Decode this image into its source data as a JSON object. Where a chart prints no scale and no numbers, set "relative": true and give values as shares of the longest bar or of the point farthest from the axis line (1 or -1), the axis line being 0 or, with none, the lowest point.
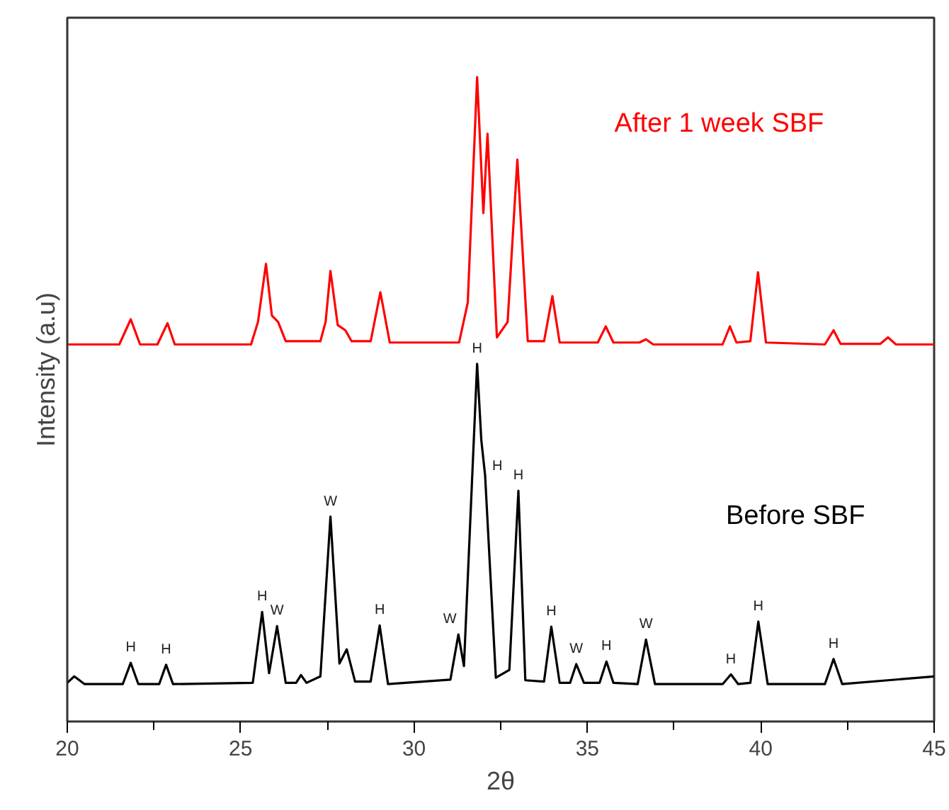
{
  "chart_data": {
    "type": "line",
    "relative": true,
    "xlabel": "2θ",
    "ylabel": "Intensity (a.u)",
    "xlim": [
      20,
      45
    ],
    "xticks": [
      20,
      25,
      30,
      35,
      40,
      45
    ],
    "grid": false,
    "marker": "none",
    "line_style": "solid",
    "series": [
      {
        "name": "After 1 week SBF",
        "color": "#ff0000",
        "x": [
          20,
          21.5,
          21.83,
          22.1,
          22.6,
          22.89,
          23.1,
          25.3,
          25.5,
          25.73,
          25.9,
          26.08,
          26.3,
          27.3,
          27.45,
          27.59,
          27.8,
          28.02,
          28.2,
          28.75,
          29.03,
          29.3,
          31.3,
          31.55,
          31.82,
          32.0,
          32.12,
          32.39,
          32.7,
          32.98,
          33.28,
          33.75,
          33.99,
          34.2,
          35.3,
          35.53,
          35.75,
          36.5,
          36.69,
          36.9,
          38.9,
          39.11,
          39.3,
          39.7,
          39.92,
          40.15,
          41.85,
          42.1,
          42.3,
          43.45,
          43.67,
          43.9,
          45
        ],
        "values": [
          0.585,
          0.585,
          0.624,
          0.585,
          0.585,
          0.618,
          0.585,
          0.585,
          0.62,
          0.71,
          0.63,
          0.62,
          0.59,
          0.59,
          0.62,
          0.699,
          0.615,
          0.607,
          0.59,
          0.59,
          0.666,
          0.588,
          0.588,
          0.65,
          1.0,
          0.789,
          0.912,
          0.596,
          0.62,
          0.872,
          0.59,
          0.59,
          0.66,
          0.588,
          0.588,
          0.613,
          0.588,
          0.588,
          0.593,
          0.585,
          0.585,
          0.613,
          0.588,
          0.59,
          0.697,
          0.588,
          0.585,
          0.607,
          0.586,
          0.586,
          0.596,
          0.585,
          0.585
        ]
      },
      {
        "name": "Before SBF",
        "color": "#000000",
        "x": [
          20,
          20.2,
          20.5,
          21.6,
          21.83,
          22.05,
          22.65,
          22.85,
          23.05,
          25.35,
          25.62,
          25.82,
          26.05,
          26.3,
          26.6,
          26.74,
          26.9,
          27.3,
          27.59,
          27.85,
          28.06,
          28.3,
          28.75,
          29.01,
          29.25,
          31.05,
          31.28,
          31.44,
          31.82,
          31.94,
          32.05,
          32.36,
          32.75,
          33.01,
          33.21,
          33.75,
          33.96,
          34.2,
          34.5,
          34.68,
          34.9,
          35.35,
          35.55,
          35.75,
          36.45,
          36.69,
          36.95,
          38.9,
          39.14,
          39.35,
          39.7,
          39.93,
          40.2,
          41.85,
          42.1,
          42.35,
          45
        ],
        "values": [
          0.06,
          0.07,
          0.058,
          0.058,
          0.091,
          0.058,
          0.058,
          0.088,
          0.058,
          0.06,
          0.17,
          0.075,
          0.148,
          0.06,
          0.06,
          0.072,
          0.06,
          0.07,
          0.318,
          0.09,
          0.112,
          0.062,
          0.062,
          0.149,
          0.058,
          0.065,
          0.135,
          0.086,
          0.555,
          0.437,
          0.382,
          0.068,
          0.08,
          0.358,
          0.064,
          0.062,
          0.147,
          0.06,
          0.06,
          0.089,
          0.06,
          0.06,
          0.093,
          0.06,
          0.058,
          0.127,
          0.058,
          0.058,
          0.073,
          0.058,
          0.06,
          0.155,
          0.058,
          0.058,
          0.097,
          0.058,
          0.07
        ]
      }
    ],
    "annotations": [
      {
        "text": "H",
        "x": 21.83,
        "y": 0.091
      },
      {
        "text": "H",
        "x": 22.85,
        "y": 0.088
      },
      {
        "text": "H",
        "x": 25.62,
        "y": 0.17
      },
      {
        "text": "W",
        "x": 26.05,
        "y": 0.148
      },
      {
        "text": "W",
        "x": 27.59,
        "y": 0.318
      },
      {
        "text": "H",
        "x": 29.01,
        "y": 0.149
      },
      {
        "text": "W",
        "x": 31.28,
        "y": 0.135
      },
      {
        "text": "H",
        "x": 31.82,
        "y": 0.555
      },
      {
        "text": "H",
        "x": 32.05,
        "y": 0.382
      },
      {
        "text": "H",
        "x": 33.01,
        "y": 0.358
      },
      {
        "text": "H",
        "x": 33.96,
        "y": 0.147
      },
      {
        "text": "W",
        "x": 34.68,
        "y": 0.089
      },
      {
        "text": "H",
        "x": 35.55,
        "y": 0.093
      },
      {
        "text": "W",
        "x": 36.69,
        "y": 0.127
      },
      {
        "text": "H",
        "x": 39.14,
        "y": 0.073
      },
      {
        "text": "H",
        "x": 39.93,
        "y": 0.155
      },
      {
        "text": "H",
        "x": 42.1,
        "y": 0.097
      }
    ]
  }
}
